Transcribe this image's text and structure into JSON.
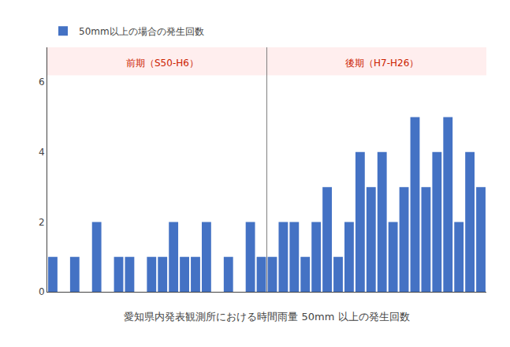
{
  "chart_data": {
    "type": "bar",
    "xlabel": "愛知県内発表観測所における時間雨量 50mm 以上の発生回数",
    "categories": [
      null,
      null,
      null,
      null,
      null,
      null,
      null,
      null,
      null,
      null,
      null,
      null,
      null,
      null,
      null,
      null,
      null,
      null,
      null,
      null,
      null,
      null,
      null,
      null,
      null,
      null,
      null,
      null,
      null,
      null,
      null,
      null,
      null,
      null,
      null,
      null,
      null,
      null,
      null,
      null
    ],
    "series": [
      {
        "name": "50mm以上の場合の発生回数",
        "color": "#4472c4",
        "values": [
          1,
          0,
          1,
          0,
          2,
          0,
          1,
          1,
          0,
          1,
          1,
          2,
          1,
          1,
          2,
          0,
          1,
          0,
          2,
          1,
          1,
          2,
          2,
          1,
          2,
          3,
          1,
          2,
          4,
          3,
          4,
          2,
          3,
          5,
          3,
          4,
          5,
          2,
          4,
          3
        ]
      }
    ],
    "ylim": [
      0,
      7
    ],
    "yticks": [
      0,
      2,
      4,
      6
    ],
    "grid": false,
    "legend": "upper left",
    "tick_labels": "y",
    "band": {
      "y0": 6.2,
      "y1": 7.0,
      "color": "#ffdddd"
    },
    "annotations": [
      {
        "text": "前期（S50-H6）",
        "x": 10,
        "y": 6.55,
        "color": "#cc2200"
      },
      {
        "text": "後期（H7-H26）",
        "x": 30,
        "y": 6.55,
        "color": "#cc2200"
      }
    ]
  }
}
